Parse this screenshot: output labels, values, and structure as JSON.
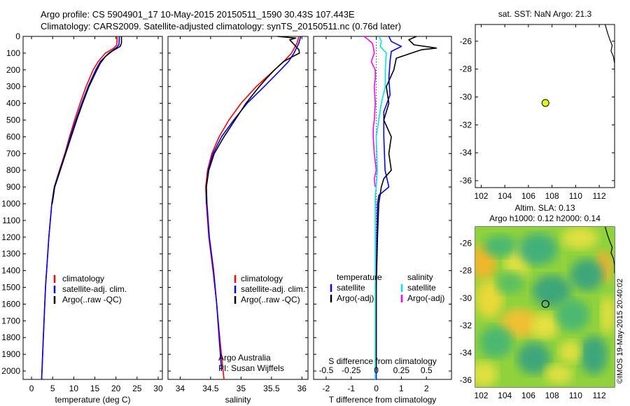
{
  "header": {
    "line1": "Argo profile: CS 5904901_17 10-May-2015 20150511_1590 30.43S 107.443E",
    "line2": "Climatology: CARS2009. Satellite-adjusted climatology: synTS_20150511.nc (0.76d later)"
  },
  "credit": "©IMOS 19-May-2015 20:40:02",
  "colors": {
    "climatology": "#ff0000",
    "satellite": "#0000ff",
    "argo": "#000000",
    "sat_salinity": "#00e5e5",
    "argo_salinity": "#ff00ff",
    "marker": "#e0ff00"
  },
  "chart_data": [
    {
      "id": "temperature",
      "type": "line",
      "xlabel": "temperature (deg C)",
      "xlim": [
        -2,
        31
      ],
      "ylim": [
        2050,
        0
      ],
      "xticks": [
        0,
        5,
        10,
        15,
        20,
        25,
        30
      ],
      "yticks": [
        0,
        100,
        200,
        300,
        400,
        500,
        600,
        700,
        800,
        900,
        1000,
        1100,
        1200,
        1300,
        1400,
        1500,
        1600,
        1700,
        1800,
        1900,
        2000
      ],
      "legend": [
        "climatology",
        "satellite-adj. clim.",
        "Argo(..raw -QC)"
      ],
      "series": [
        {
          "name": "climatology",
          "depth": [
            0,
            50,
            70,
            100,
            150,
            200,
            300,
            400,
            500,
            600,
            700,
            800,
            900,
            1000,
            1200,
            1500,
            1800,
            2050
          ],
          "values": [
            20.3,
            20.2,
            19.5,
            17.5,
            15.8,
            14.6,
            12.9,
            11.5,
            10.2,
            9.0,
            7.9,
            6.6,
            5.4,
            4.8,
            4.1,
            3.3,
            2.8,
            2.4
          ]
        },
        {
          "name": "satellite-adj. clim.",
          "depth": [
            0,
            50,
            70,
            100,
            150,
            200,
            300,
            400,
            500,
            600,
            700,
            800,
            900,
            1000,
            1200,
            1500,
            1800,
            2050
          ],
          "values": [
            20.8,
            20.7,
            20.0,
            18.3,
            16.3,
            15.2,
            13.4,
            11.9,
            10.5,
            9.2,
            8.0,
            6.7,
            5.4,
            4.8,
            4.1,
            3.3,
            2.8,
            2.4
          ]
        },
        {
          "name": "Argo(..raw -QC)",
          "depth": [
            0,
            40,
            60,
            90,
            120,
            160,
            200,
            300,
            400,
            500,
            600,
            700,
            800,
            900,
            1000
          ],
          "values": [
            21.3,
            21.3,
            21.0,
            19.0,
            17.5,
            16.3,
            15.5,
            13.6,
            12.1,
            10.7,
            9.4,
            8.1,
            6.8,
            5.5,
            4.9
          ]
        }
      ]
    },
    {
      "id": "salinity",
      "type": "line",
      "xlabel": "salinity",
      "xlim": [
        33.8,
        36.1
      ],
      "ylim": [
        2050,
        0
      ],
      "xticks": [
        34,
        34.5,
        35,
        35.5,
        36
      ],
      "legend": [
        "climatology",
        "satellite-adj. clim.",
        "Argo(..raw -QC)"
      ],
      "annotations": [
        "Argo Australia",
        "PI: Susan Wijffels"
      ],
      "series": [
        {
          "name": "climatology",
          "depth": [
            0,
            40,
            100,
            150,
            200,
            300,
            400,
            500,
            600,
            700,
            800,
            900,
            1000,
            1200,
            1400,
            1600,
            1800,
            2050
          ],
          "values": [
            35.95,
            35.92,
            35.83,
            35.7,
            35.55,
            35.25,
            35.0,
            34.8,
            34.64,
            34.52,
            34.45,
            34.42,
            34.43,
            34.47,
            34.54,
            34.6,
            34.65,
            34.72
          ]
        },
        {
          "name": "satellite-adj. clim.",
          "depth": [
            0,
            40,
            100,
            150,
            200,
            300,
            400,
            500,
            600,
            700,
            800,
            900,
            1000,
            1200,
            1400,
            1600,
            1800,
            2000
          ],
          "values": [
            35.98,
            35.95,
            35.87,
            35.78,
            35.65,
            35.38,
            35.1,
            34.88,
            34.68,
            34.54,
            34.46,
            34.43,
            34.44,
            34.48,
            34.55,
            34.6,
            34.64,
            34.68
          ]
        },
        {
          "name": "Argo(..raw -QC)",
          "depth": [
            0,
            10,
            20,
            40,
            60,
            80,
            100,
            120,
            150,
            200,
            250,
            300,
            400,
            500,
            600,
            700,
            800,
            900,
            1000
          ],
          "values": [
            35.6,
            35.9,
            35.8,
            35.85,
            35.9,
            35.95,
            35.96,
            35.85,
            35.7,
            35.55,
            35.42,
            35.3,
            35.08,
            34.9,
            34.72,
            34.56,
            34.47,
            34.43,
            34.43
          ]
        }
      ]
    },
    {
      "id": "difference",
      "type": "line",
      "xlabel": "T difference from climatology",
      "xlabel_top": "S difference from climatology",
      "xlim": [
        -2.5,
        3.0
      ],
      "ylim": [
        2050,
        0
      ],
      "xticks_T": [
        -2,
        -1,
        0,
        1,
        2
      ],
      "xticks_S": [
        "-0.5",
        "-0.25",
        "0",
        "0.25",
        "0.5"
      ],
      "xticks_S_values": [
        -0.5,
        -0.25,
        0,
        0.25,
        0.5
      ],
      "legend": {
        "temperature": "temperature",
        "satellite": "satellite",
        "argo": "Argo(-adj)",
        "salinity": "salinity"
      },
      "series": [
        {
          "name": "T satellite",
          "depth": [
            0,
            30,
            60,
            90,
            150,
            250,
            350,
            450,
            600,
            800,
            900,
            950,
            1000,
            1200,
            1500,
            2050
          ],
          "values": [
            0.5,
            0.6,
            1.0,
            0.6,
            0.55,
            0.5,
            0.55,
            0.3,
            0.3,
            0.35,
            0.5,
            0.1,
            0.05,
            0.02,
            0.0,
            0.0
          ]
        },
        {
          "name": "T Argo(-adj)",
          "depth": [
            0,
            20,
            50,
            70,
            80,
            100,
            130,
            200,
            300,
            400,
            500,
            600,
            700,
            800,
            850,
            900,
            1000,
            1200,
            1500,
            2000
          ],
          "values": [
            1.6,
            1.3,
            1.5,
            2.4,
            1.8,
            1.4,
            0.8,
            0.7,
            0.4,
            0.5,
            0.3,
            0.6,
            0.5,
            0.6,
            0.3,
            0.2,
            0.1,
            0.05,
            0.0,
            0.0
          ]
        },
        {
          "name": "S satellite",
          "depth": [
            0,
            30,
            60,
            100,
            200,
            300,
            400,
            600,
            800,
            900,
            950,
            1000,
            1200,
            1500,
            2050
          ],
          "values": [
            0.03,
            0.05,
            0.04,
            0.1,
            0.09,
            0.09,
            0.05,
            0.0,
            0.01,
            0.0,
            -0.01,
            -0.01,
            -0.01,
            -0.01,
            -0.01
          ]
        },
        {
          "name": "S Argo(-adj)",
          "depth": [
            0,
            20,
            40,
            60,
            100,
            150,
            200,
            250,
            300,
            400,
            500,
            550,
            600,
            700,
            800,
            850,
            900
          ],
          "values": [
            -0.12,
            -0.08,
            -0.04,
            -0.03,
            -0.02,
            -0.05,
            -0.01,
            -0.01,
            -0.02,
            -0.01,
            -0.02,
            -0.03,
            -0.03,
            -0.02,
            0.0,
            -0.02,
            -0.01
          ]
        }
      ]
    },
    {
      "id": "sst-map",
      "type": "scatter",
      "title": "sat. SST: NaN Argo: 21.3",
      "xlim": [
        101.5,
        113.3
      ],
      "ylim": [
        -36.5,
        -24.8
      ],
      "xticks": [
        102,
        104,
        106,
        108,
        110,
        112
      ],
      "yticks": [
        -26,
        -28,
        -30,
        -32,
        -34,
        -36
      ],
      "points": [
        {
          "lon": 107.443,
          "lat": -30.43
        }
      ]
    },
    {
      "id": "sla-map",
      "type": "heatmap",
      "title1": "Altim. SLA: 0.13",
      "title2": "Argo h1000: 0.12 h2000: 0.14",
      "xlim": [
        101.5,
        113.3
      ],
      "ylim": [
        -36.5,
        -24.8
      ],
      "xticks": [
        102,
        104,
        106,
        108,
        110,
        112
      ],
      "yticks": [
        -26,
        -28,
        -30,
        -32,
        -34,
        -36
      ],
      "points": [
        {
          "lon": 107.443,
          "lat": -30.43
        }
      ]
    }
  ]
}
